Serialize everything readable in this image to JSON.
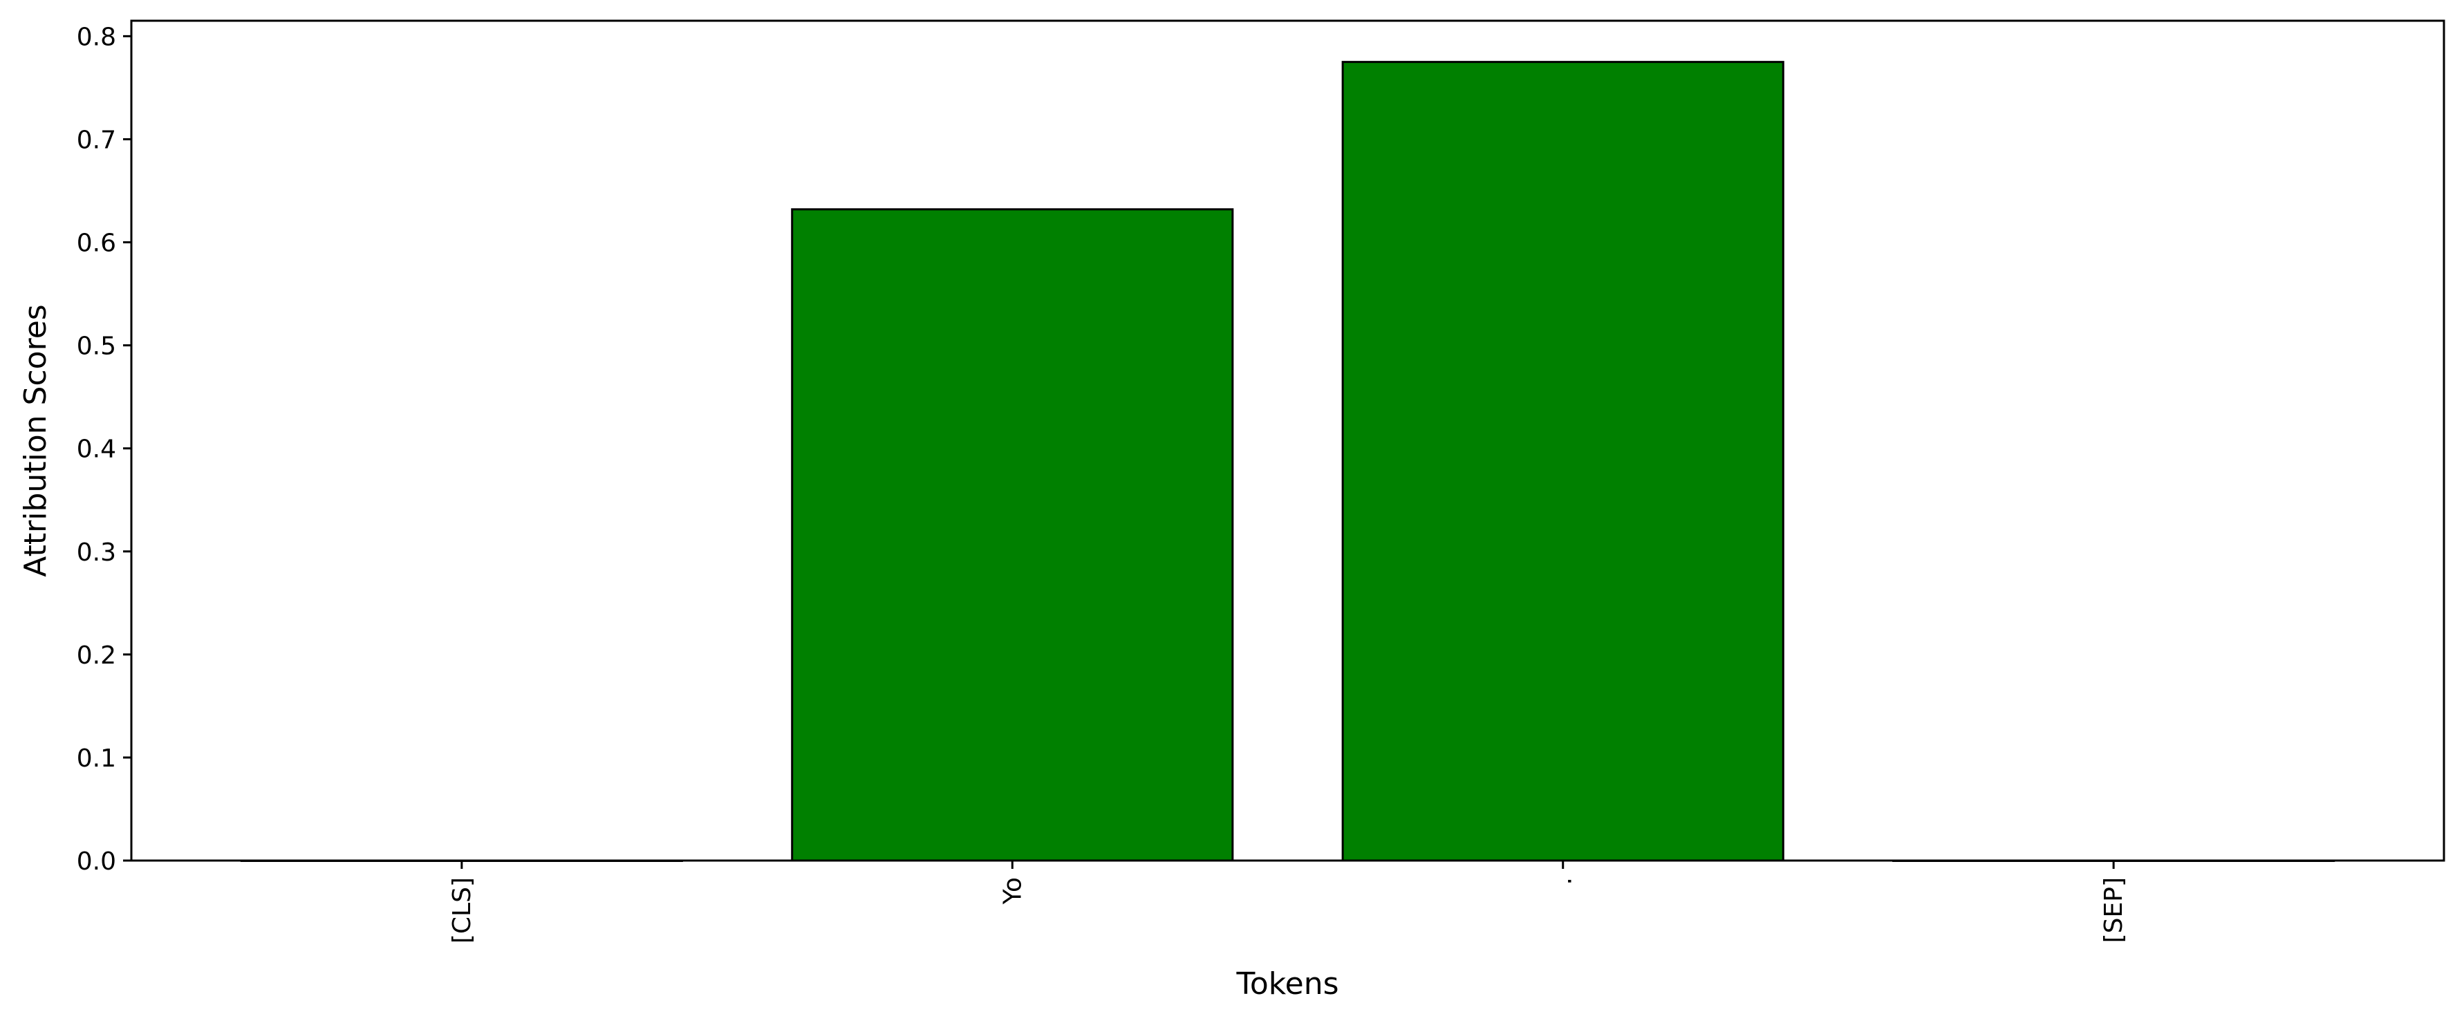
{
  "chart_data": {
    "type": "bar",
    "categories": [
      "[CLS]",
      "Yo",
      ".",
      "[SEP]"
    ],
    "values": [
      0.0,
      0.632,
      0.775,
      0.0
    ],
    "title": "",
    "xlabel": "Tokens",
    "ylabel": "Attribution Scores",
    "ylim": [
      0,
      0.815
    ],
    "yticks": [
      "0.0",
      "0.1",
      "0.2",
      "0.3",
      "0.4",
      "0.5",
      "0.6",
      "0.7",
      "0.8"
    ],
    "bar_color": "#008000",
    "edge_color": "#000000",
    "grid": false,
    "legend": "none"
  }
}
